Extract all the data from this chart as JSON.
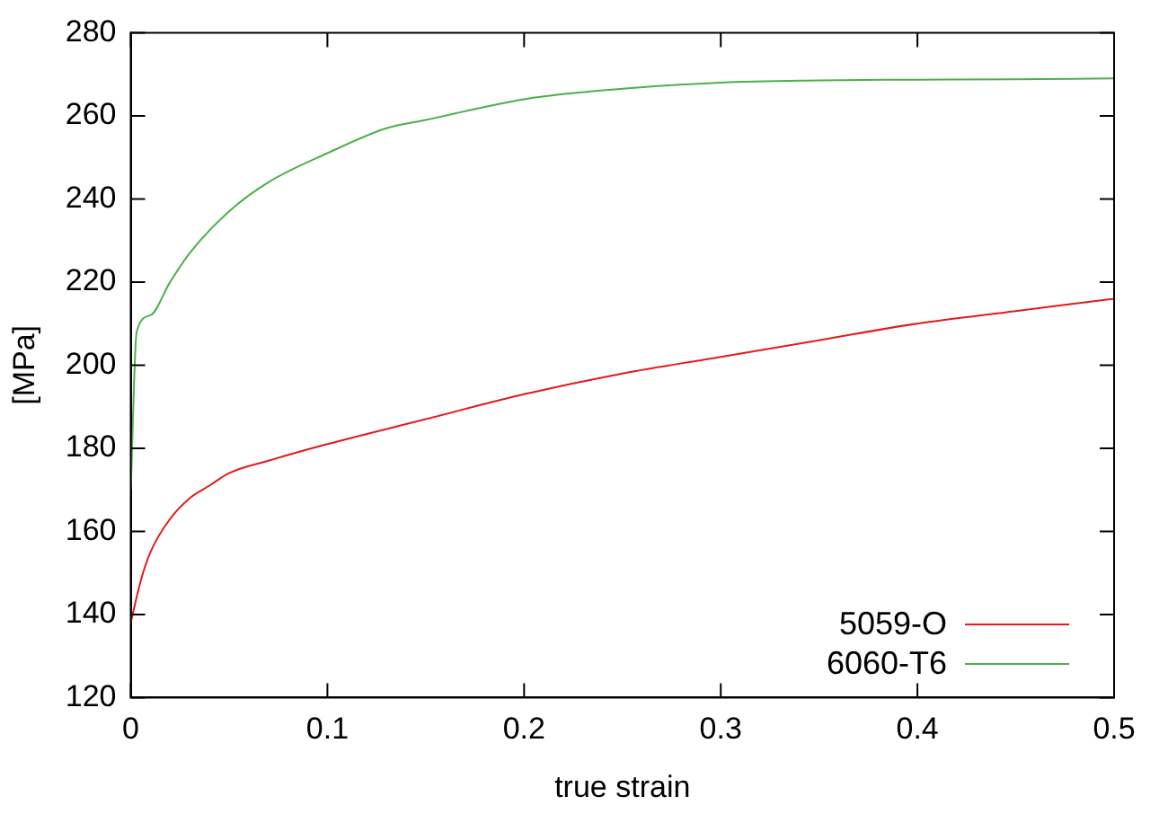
{
  "chart_data": {
    "type": "line",
    "xlabel": "true strain",
    "ylabel": "[MPa]",
    "xlim": [
      0,
      0.5
    ],
    "ylim": [
      120,
      280
    ],
    "xticks": [
      0,
      0.1,
      0.2,
      0.3,
      0.4,
      0.5
    ],
    "yticks": [
      120,
      140,
      160,
      180,
      200,
      220,
      240,
      260,
      280
    ],
    "grid": false,
    "legend": "bottom right",
    "marker": "none",
    "line_style": "solid",
    "series": [
      {
        "name": "5059-O",
        "color": "#e41a1c",
        "x": [
          0,
          0.005,
          0.01,
          0.02,
          0.03,
          0.04,
          0.05,
          0.07,
          0.1,
          0.15,
          0.2,
          0.25,
          0.3,
          0.35,
          0.4,
          0.45,
          0.5
        ],
        "values": [
          138,
          148,
          155,
          163,
          168,
          171,
          174,
          177,
          181,
          187,
          193,
          198,
          202,
          206,
          210,
          213,
          216
        ]
      },
      {
        "name": "6060-T6",
        "color": "#4daf4a",
        "x": [
          0,
          0.003,
          0.01,
          0.02,
          0.03,
          0.05,
          0.07,
          0.1,
          0.13,
          0.15,
          0.2,
          0.25,
          0.3,
          0.35,
          0.4,
          0.45,
          0.5
        ],
        "values": [
          170,
          208,
          212,
          220,
          227,
          237,
          244,
          251,
          257,
          259,
          264,
          266.5,
          268,
          268.5,
          268.7,
          268.8,
          269
        ]
      }
    ]
  }
}
